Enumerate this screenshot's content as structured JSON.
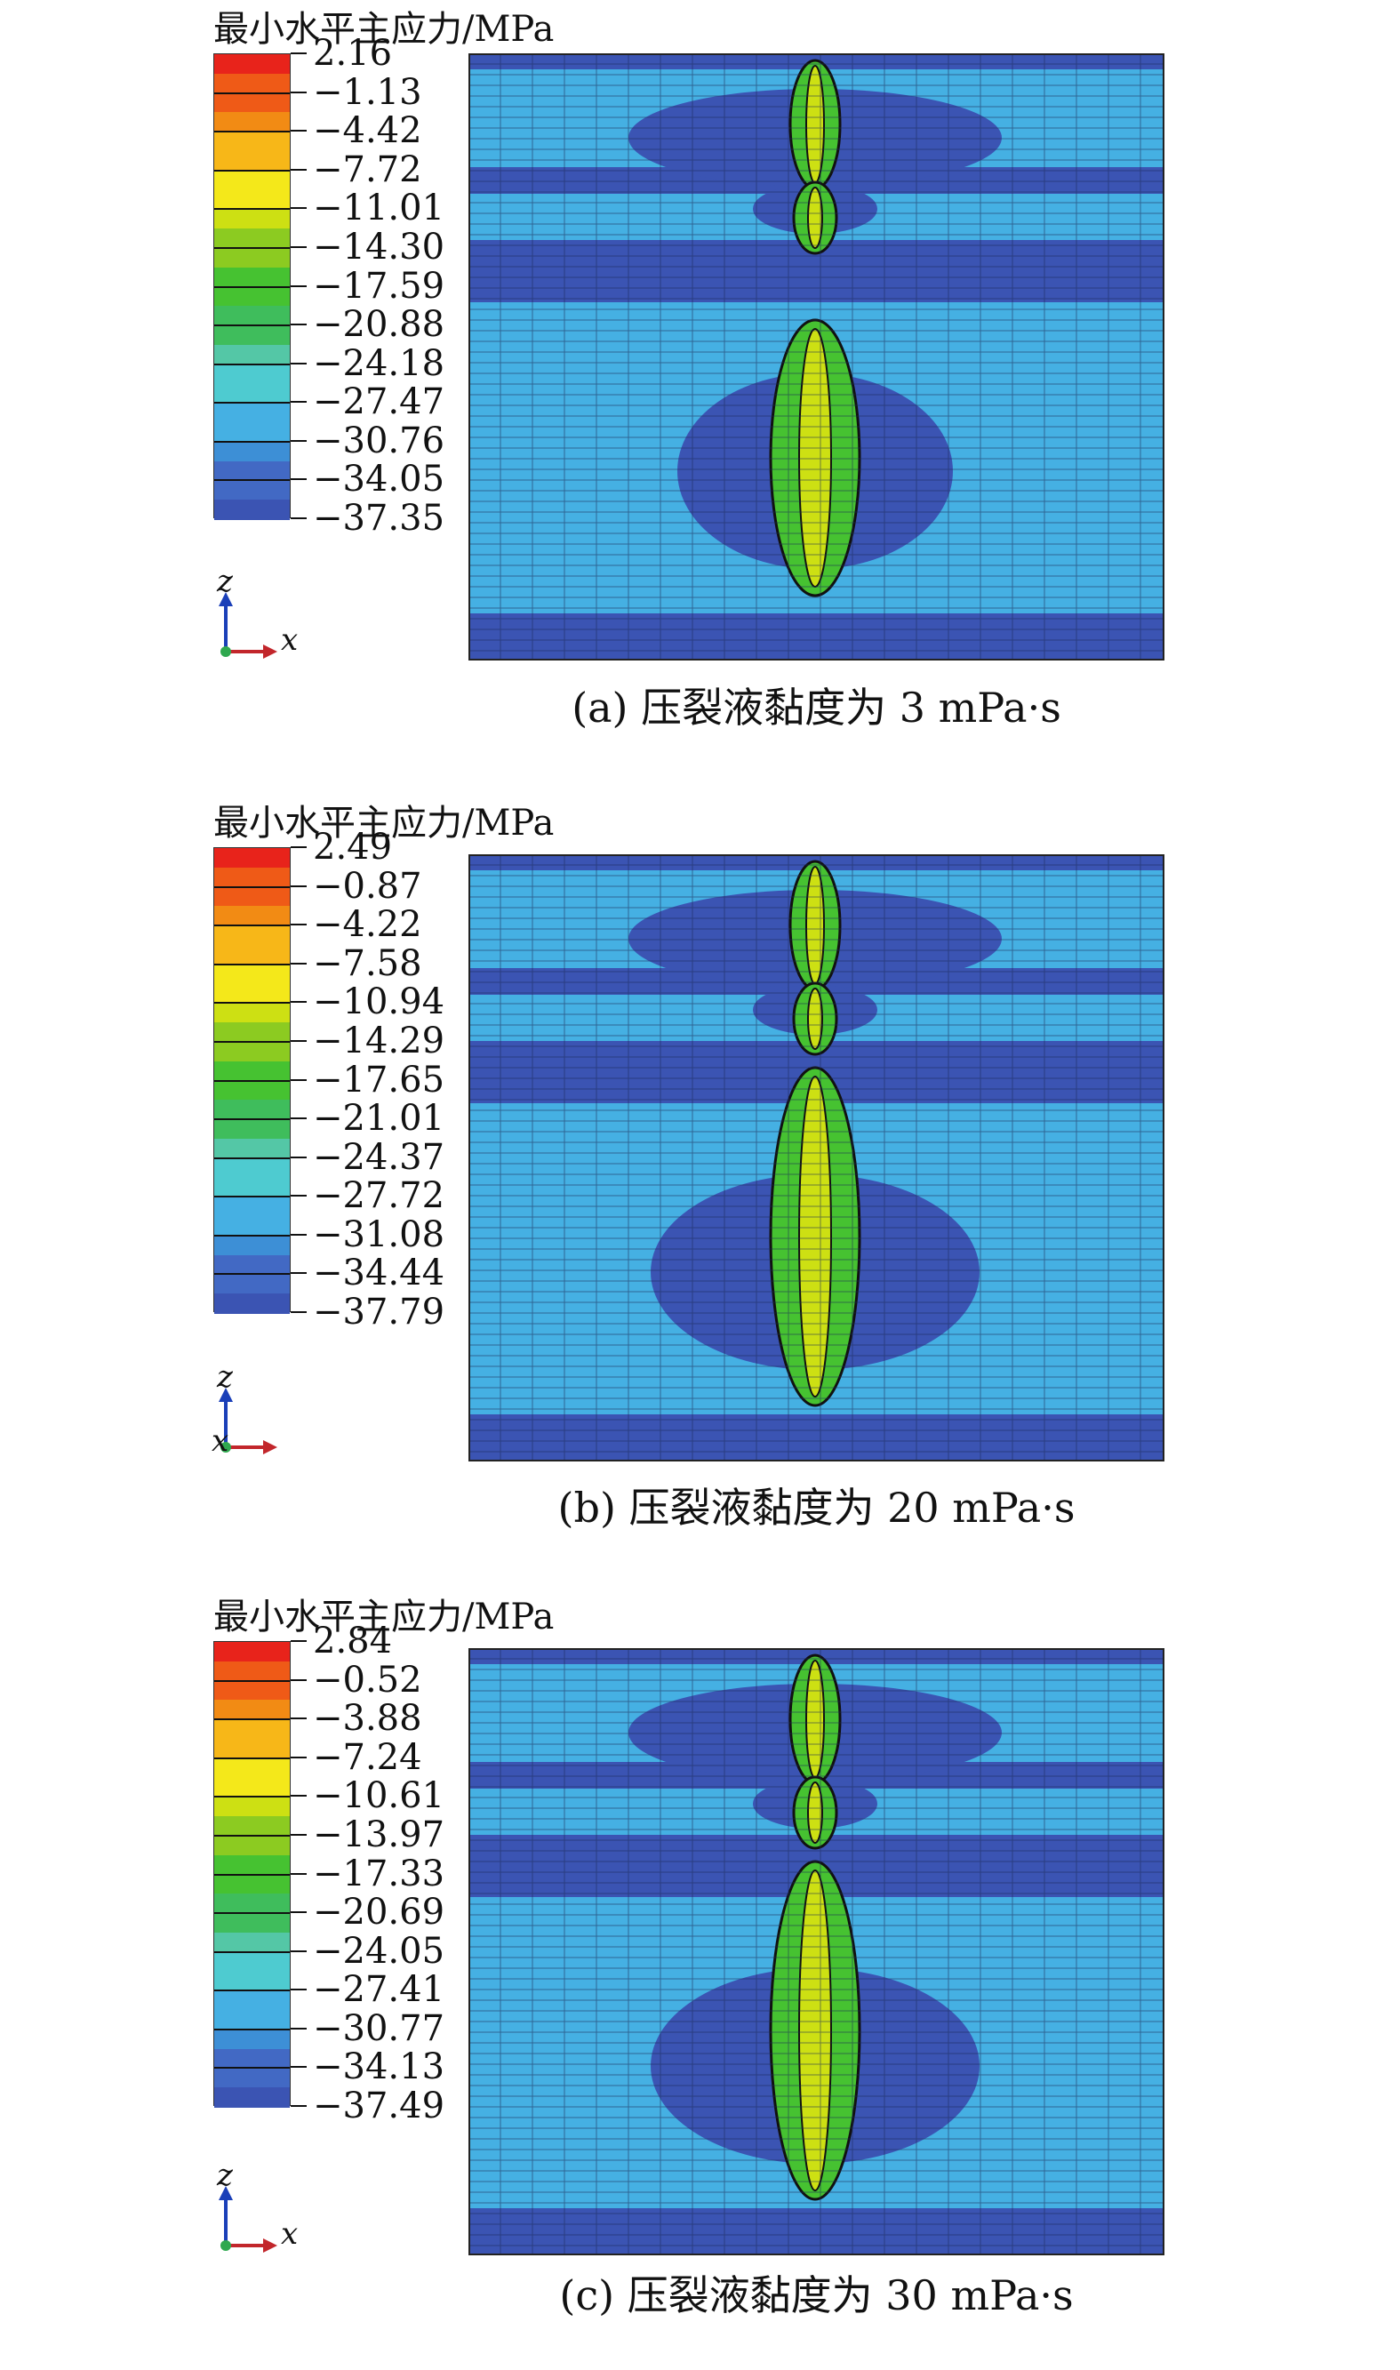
{
  "colors": {
    "scale": [
      "#3b54b3",
      "#4269c4",
      "#3d8fd6",
      "#45b0e3",
      "#4ecbd0",
      "#54c7a6",
      "#3fbd5c",
      "#46c231",
      "#8ccb21",
      "#cde013",
      "#f4e81a",
      "#f7b718",
      "#f28b14",
      "#ef5a17",
      "#e8231b"
    ],
    "layer_dark_blue": "#3b54b3",
    "field_blue": "#45b0e3",
    "green": "#46c231"
  },
  "panels": [
    {
      "legend_title": "最小水平主应力/MPa",
      "ticks": [
        "2.16",
        "−1.13",
        "−4.42",
        "−7.72",
        "−11.01",
        "−14.30",
        "−17.59",
        "−20.88",
        "−24.18",
        "−27.47",
        "−30.76",
        "−34.05",
        "−37.35"
      ],
      "axis_z": "z",
      "axis_x": "x",
      "caption": "(a) 压裂液黏度为 3 mPa·s"
    },
    {
      "legend_title": "最小水平主应力/MPa",
      "ticks": [
        "2.49",
        "−0.87",
        "−4.22",
        "−7.58",
        "−10.94",
        "−14.29",
        "−17.65",
        "−21.01",
        "−24.37",
        "−27.72",
        "−31.08",
        "−34.44",
        "−37.79"
      ],
      "axis_z": "z",
      "axis_x": "x",
      "caption": "(b) 压裂液黏度为 20 mPa·s"
    },
    {
      "legend_title": "最小水平主应力/MPa",
      "ticks": [
        "2.84",
        "−0.52",
        "−3.88",
        "−7.24",
        "−10.61",
        "−13.97",
        "−17.33",
        "−20.69",
        "−24.05",
        "−27.41",
        "−30.77",
        "−34.13",
        "−37.49"
      ],
      "axis_z": "z",
      "axis_x": "x",
      "caption": "(c) 压裂液黏度为 30 mPa·s"
    }
  ]
}
